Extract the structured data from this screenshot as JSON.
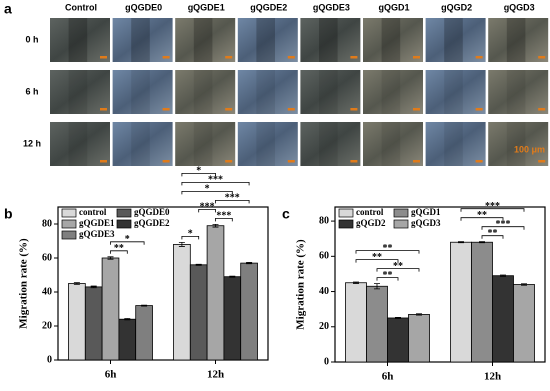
{
  "panel_a": {
    "label": "a",
    "columns": [
      "Control",
      "gQGDE0",
      "gQGDE1",
      "gQGDE2",
      "gQGDE3",
      "gQGD1",
      "gQGD2",
      "gQGD3"
    ],
    "rows": [
      "0 h",
      "6 h",
      "12 h"
    ],
    "scale_bar": "100 μm"
  },
  "chart_data": [
    {
      "type": "bar",
      "panel": "b",
      "ylabel": "Migration rate (%)",
      "categories": [
        "6h",
        "12h"
      ],
      "ylim": [
        0,
        90
      ],
      "yticks": [
        0,
        20,
        40,
        60,
        80
      ],
      "grid": false,
      "series": [
        {
          "name": "control",
          "color": "#d9d9d9",
          "values": [
            45,
            68
          ],
          "errors": [
            0.5,
            1.2
          ]
        },
        {
          "name": "gQGDE0",
          "color": "#595959",
          "values": [
            43,
            56
          ],
          "errors": [
            0.5,
            0.3
          ]
        },
        {
          "name": "gQGDE1",
          "color": "#a6a6a6",
          "values": [
            60,
            79
          ],
          "errors": [
            0.7,
            0.8
          ]
        },
        {
          "name": "gQGDE2",
          "color": "#333333",
          "values": [
            24,
            49
          ],
          "errors": [
            0.4,
            0.3
          ]
        },
        {
          "name": "gQGDE3",
          "color": "#7f7f7f",
          "values": [
            32,
            57
          ],
          "errors": [
            0.3,
            0.4
          ]
        }
      ],
      "significance": [
        {
          "category": 0,
          "from": 2,
          "to": 3,
          "label": "**"
        },
        {
          "category": 0,
          "from": 2,
          "to": 4,
          "label": "*"
        },
        {
          "category": 1,
          "from": 0,
          "to": 1,
          "label": "*"
        },
        {
          "category": 1,
          "from": 2,
          "to": 3,
          "label": "***"
        },
        {
          "category": 1,
          "from": 1,
          "to": 2,
          "label": "***"
        },
        {
          "category": 1,
          "from": 2,
          "to": 4,
          "label": "***"
        },
        {
          "category": 1,
          "from": 0,
          "to": 3,
          "label": "*"
        },
        {
          "category": 1,
          "from": 0,
          "to": 4,
          "label": "***"
        },
        {
          "category": 1,
          "from": 0,
          "to": 2,
          "label": "*"
        }
      ]
    },
    {
      "type": "bar",
      "panel": "c",
      "ylabel": "Migration rate (%)",
      "categories": [
        "6h",
        "12h"
      ],
      "ylim": [
        0,
        88
      ],
      "yticks": [
        0,
        20,
        40,
        60,
        80
      ],
      "grid": false,
      "series": [
        {
          "name": "control",
          "color": "#d9d9d9",
          "values": [
            45,
            68
          ],
          "errors": [
            0.4,
            0.3
          ]
        },
        {
          "name": "gQGD1",
          "color": "#8c8c8c",
          "values": [
            43,
            68
          ],
          "errors": [
            1.5,
            0.3
          ]
        },
        {
          "name": "gQGD2",
          "color": "#333333",
          "values": [
            25,
            49
          ],
          "errors": [
            0.3,
            0.4
          ]
        },
        {
          "name": "gQGD3",
          "color": "#a6a6a6",
          "values": [
            27,
            44
          ],
          "errors": [
            0.4,
            0.4
          ]
        }
      ],
      "significance": [
        {
          "category": 0,
          "from": 1,
          "to": 2,
          "label": "**"
        },
        {
          "category": 0,
          "from": 1,
          "to": 3,
          "label": "**"
        },
        {
          "category": 0,
          "from": 0,
          "to": 2,
          "label": "**"
        },
        {
          "category": 0,
          "from": 0,
          "to": 3,
          "label": "**"
        },
        {
          "category": 1,
          "from": 1,
          "to": 2,
          "label": "**"
        },
        {
          "category": 1,
          "from": 1,
          "to": 3,
          "label": "***"
        },
        {
          "category": 1,
          "from": 0,
          "to": 2,
          "label": "**"
        },
        {
          "category": 1,
          "from": 0,
          "to": 3,
          "label": "***"
        }
      ]
    }
  ]
}
